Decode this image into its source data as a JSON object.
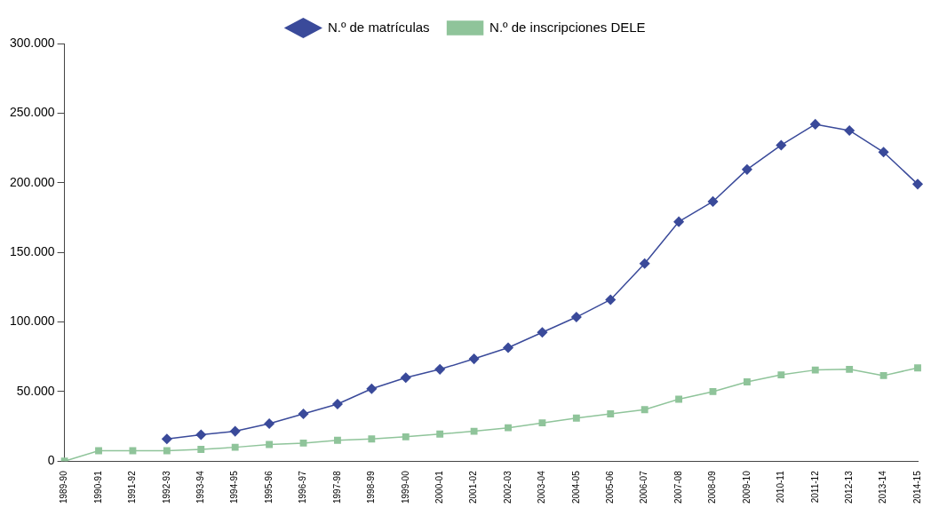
{
  "chart_data": {
    "type": "line",
    "categories": [
      "1989-90",
      "1990-91",
      "1991-92",
      "1992-93",
      "1993-94",
      "1994-95",
      "1995-96",
      "1996-97",
      "1997-98",
      "1998-99",
      "1999-00",
      "2000-01",
      "2001-02",
      "2002-03",
      "2003-04",
      "2004-05",
      "2005-06",
      "2006-07",
      "2007-08",
      "2008-09",
      "2009-10",
      "2010-11",
      "2011-12",
      "2012-13",
      "2013-14",
      "2014-15"
    ],
    "series": [
      {
        "name": "N.º de matrículas",
        "color": "#3a4a9a",
        "marker": "diamond",
        "values": [
          null,
          null,
          null,
          16000,
          19000,
          21500,
          27000,
          34000,
          41000,
          52000,
          60000,
          66000,
          73500,
          81500,
          92500,
          103500,
          116000,
          142000,
          172000,
          186500,
          209500,
          227000,
          242000,
          237500,
          222000,
          199000
        ]
      },
      {
        "name": "N.º de inscripciones DELE",
        "color": "#8fc49a",
        "marker": "square",
        "values": [
          0,
          7500,
          7500,
          7500,
          8500,
          10000,
          12000,
          13000,
          15000,
          16000,
          17500,
          19500,
          21500,
          24000,
          27500,
          31000,
          34000,
          37000,
          44500,
          50000,
          57000,
          62000,
          65500,
          66000,
          61500,
          67000
        ]
      }
    ],
    "ylim": [
      0,
      300000
    ],
    "yticks": [
      {
        "value": 0,
        "label": "0"
      },
      {
        "value": 50000,
        "label": "50.000"
      },
      {
        "value": 100000,
        "label": "100.000"
      },
      {
        "value": 150000,
        "label": "150.000"
      },
      {
        "value": 200000,
        "label": "200.000"
      },
      {
        "value": 250000,
        "label": "250.000"
      },
      {
        "value": 300000,
        "label": "300.000"
      }
    ],
    "grid": false,
    "legend": "top",
    "line_style": "solid"
  }
}
